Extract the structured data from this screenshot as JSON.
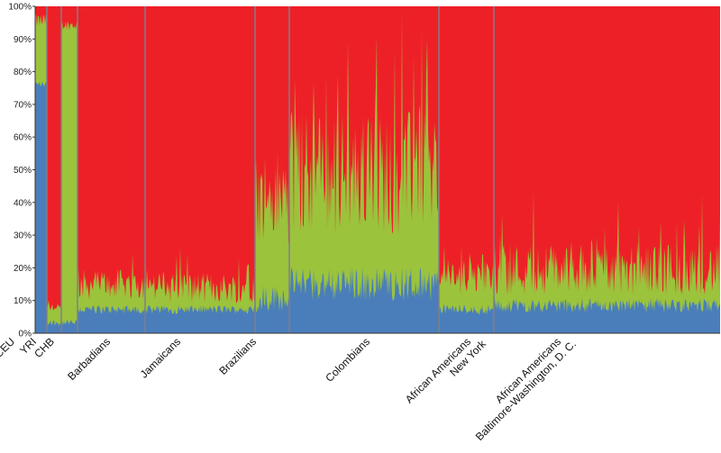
{
  "chart_data": {
    "type": "bar",
    "stacked": true,
    "normalized_percent": true,
    "title": "",
    "xlabel": "",
    "ylabel": "",
    "ylim": [
      0,
      100
    ],
    "y_ticks": [
      "0%",
      "10%",
      "20%",
      "30%",
      "40%",
      "50%",
      "60%",
      "70%",
      "80%",
      "90%",
      "100%"
    ],
    "grid": false,
    "legend": "none",
    "colors": {
      "blue": "#4a7ebb",
      "green": "#9bc33c",
      "red": "#ee2027",
      "divider": "#7f7f8c"
    },
    "groups": [
      {
        "label": "CEU",
        "blue_pct": 76,
        "green_top_pct": 95,
        "var": 3
      },
      {
        "label": "YRI",
        "blue_pct": 3,
        "green_top_pct": 7,
        "var": 2
      },
      {
        "label": "CHB",
        "blue_pct": 3,
        "green_top_pct": 94,
        "var": 2
      },
      {
        "label": "Barbadians",
        "blue_pct": 7,
        "green_top_pct": 14,
        "var": 6
      },
      {
        "label": "Jamaicans",
        "blue_pct": 7,
        "green_top_pct": 13,
        "var": 6
      },
      {
        "label": "Brazilians",
        "blue_pct": 10,
        "green_top_pct": 38,
        "var": 20
      },
      {
        "label": "Colombians",
        "blue_pct": 14,
        "green_top_pct": 45,
        "var": 24
      },
      {
        "label": "African Americans New York",
        "label_lines": [
          "African Americans",
          "New York"
        ],
        "blue_pct": 7,
        "green_top_pct": 16,
        "var": 7
      },
      {
        "label": "African Americans Baltimore-Washington, D. C.",
        "label_lines": [
          "African Americans",
          "Baltimore-Washington, D. C."
        ],
        "blue_pct": 8,
        "green_top_pct": 18,
        "var": 10
      }
    ]
  }
}
